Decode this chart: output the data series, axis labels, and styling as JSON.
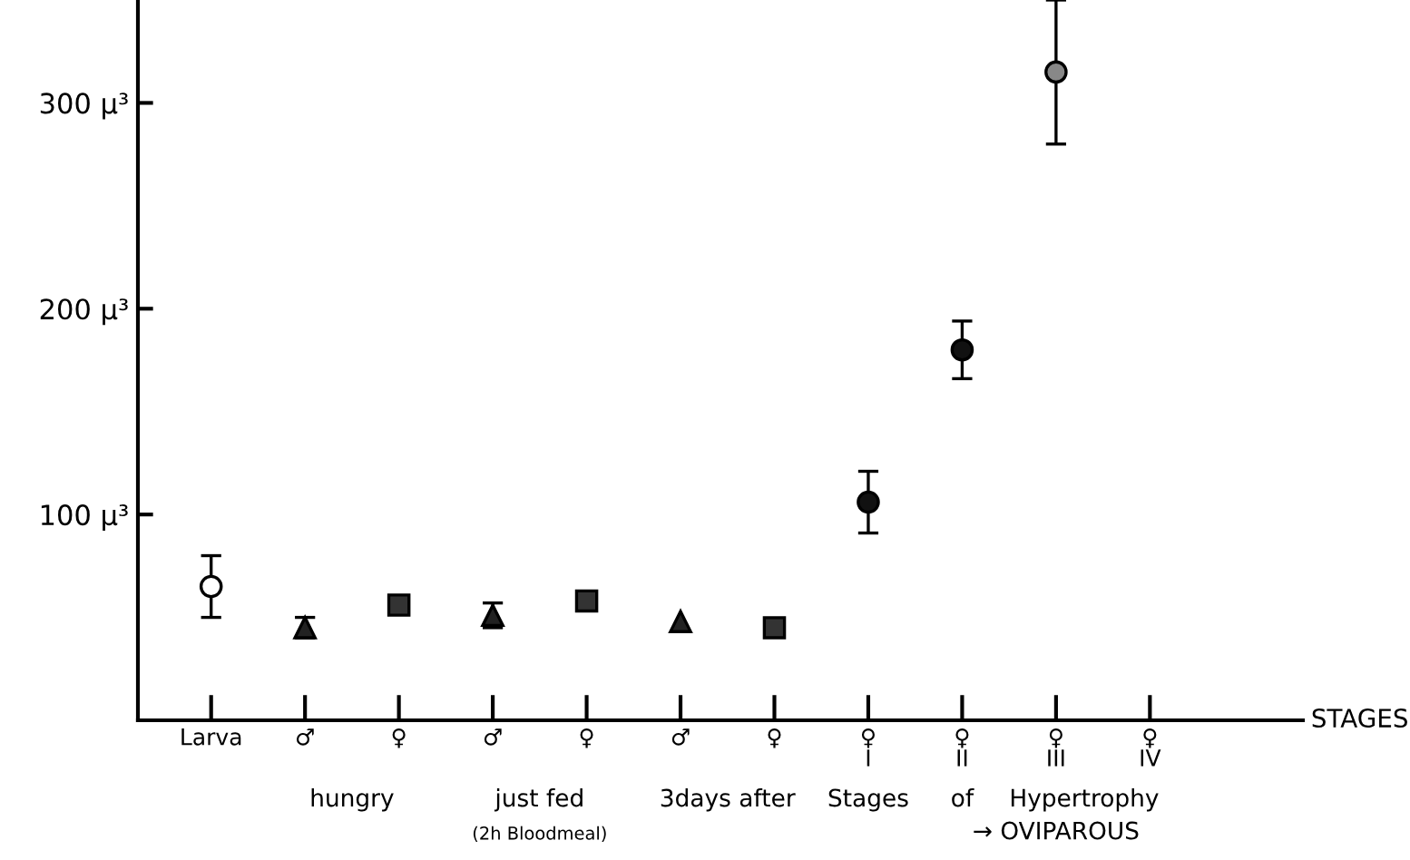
{
  "chart_data": {
    "type": "scatter",
    "xlabel": "STAGES",
    "categories": [
      "Larva",
      "♂",
      "♀",
      "♂",
      "♀",
      "♂",
      "♀",
      "♀\nI",
      "♀\nII",
      "♀\nIII",
      "♀\nIV"
    ],
    "series": [
      {
        "color": "#ffffff",
        "marker": "circle",
        "values": [
          65,
          null,
          null,
          null,
          null,
          null,
          null,
          null,
          null,
          null,
          null
        ],
        "errors": [
          15,
          null,
          null,
          null,
          null,
          null,
          null,
          null,
          null,
          null,
          null
        ]
      },
      {
        "color": "#222222",
        "marker": "triangle",
        "values": [
          null,
          45,
          null,
          51,
          null,
          48,
          null,
          null,
          null,
          null,
          null
        ],
        "errors": [
          null,
          5,
          null,
          6,
          null,
          null,
          null,
          null,
          null,
          null,
          null
        ]
      },
      {
        "color": "#333333",
        "marker": "square",
        "values": [
          null,
          null,
          56,
          null,
          58,
          null,
          45,
          null,
          null,
          null,
          null
        ],
        "errors": [
          null,
          null,
          3,
          null,
          3,
          null,
          3,
          null,
          null,
          null,
          null
        ]
      },
      {
        "color": "#111111",
        "marker": "circle",
        "values": [
          null,
          null,
          null,
          null,
          null,
          null,
          null,
          106,
          180,
          null,
          null
        ],
        "errors": [
          null,
          null,
          null,
          null,
          null,
          null,
          null,
          15,
          14,
          null,
          null
        ]
      },
      {
        "color": "#888888",
        "marker": "circle",
        "values": [
          null,
          null,
          null,
          null,
          null,
          null,
          null,
          null,
          null,
          315,
          null
        ],
        "errors": [
          null,
          null,
          null,
          null,
          null,
          null,
          null,
          null,
          null,
          35,
          null
        ]
      }
    ],
    "ylim": [
      0,
      350
    ],
    "yticks": [
      {
        "value": 100,
        "label": "100 μ³"
      },
      {
        "value": 200,
        "label": "200 μ³"
      },
      {
        "value": 300,
        "label": "300 μ³"
      }
    ],
    "annotations": [
      "hungry",
      "just fed",
      "3days after",
      "(2h Bloodmeal)",
      "Stages",
      "of",
      "Hypertrophy",
      "→ OVIPAROUS"
    ],
    "grid": false,
    "legend": false
  }
}
